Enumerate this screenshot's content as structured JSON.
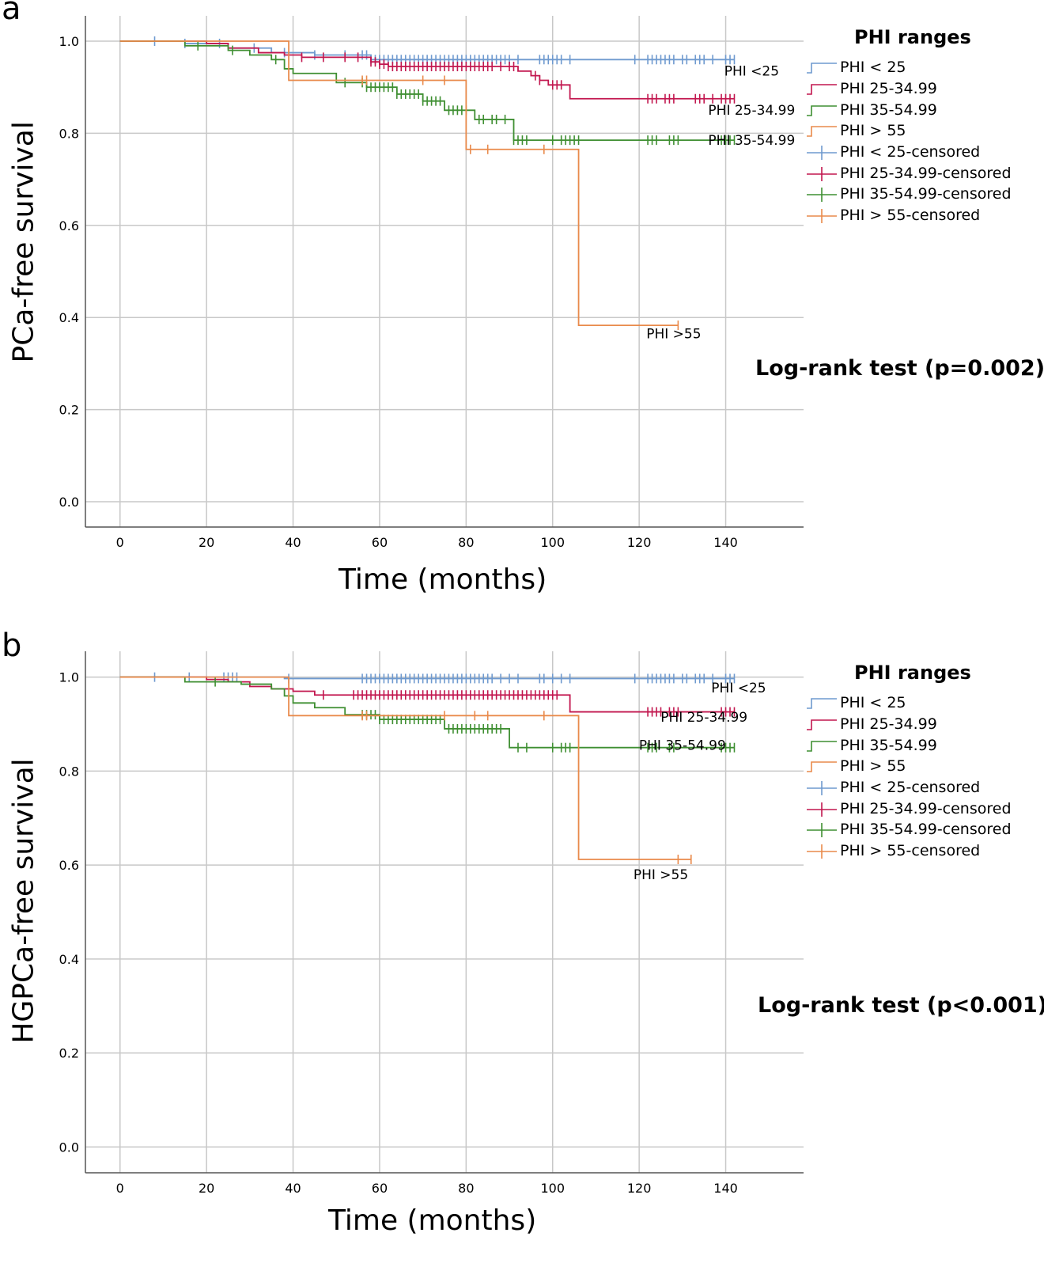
{
  "series_colors": {
    "PHI < 25": "#6F9ACF",
    "PHI 25-34.99": "#C2174F",
    "PHI 35-54.99": "#3F8F32",
    "PHI > 55": "#E98A4B"
  },
  "chart_data": [
    {
      "panel_letter": "a",
      "type": "line",
      "step": true,
      "xlabel": "Time (months)",
      "ylabel": "PCa-free survival",
      "xlim": [
        -8,
        158
      ],
      "ylim": [
        -0.055,
        1.055
      ],
      "xticks": [
        0,
        20,
        40,
        60,
        80,
        100,
        120,
        140
      ],
      "yticks": [
        "0.0",
        "0.2",
        "0.4",
        "0.6",
        "0.8",
        "1.0"
      ],
      "grid": true,
      "legend_title": "PHI ranges",
      "legend_position": "right",
      "legend": [
        "PHI < 25",
        "PHI 25-34.99",
        "PHI 35-54.99",
        "PHI > 55",
        "PHI < 25-censored",
        "PHI 25-34.99-censored",
        "PHI 35-54.99-censored",
        "PHI > 55-censored"
      ],
      "annotation": "Log-rank test (p=0.002)",
      "series": [
        {
          "name": "PHI < 25",
          "label": "PHI <25",
          "label_at": [
            146,
            0.925
          ],
          "steps": [
            [
              0,
              1
            ],
            [
              15,
              0.995
            ],
            [
              25,
              0.985
            ],
            [
              35,
              0.975
            ],
            [
              45,
              0.97
            ],
            [
              58,
              0.96
            ],
            [
              142,
              0.96
            ]
          ],
          "censored": [
            8,
            15,
            23,
            31,
            38,
            45,
            52,
            56,
            57,
            58,
            59,
            60,
            61,
            62,
            63,
            64,
            65,
            66,
            67,
            68,
            69,
            70,
            71,
            72,
            73,
            74,
            75,
            76,
            77,
            78,
            79,
            80,
            81,
            82,
            83,
            84,
            85,
            86,
            87,
            88,
            89,
            90,
            92,
            97,
            98,
            99,
            100,
            101,
            102,
            104,
            119,
            122,
            123,
            124,
            125,
            126,
            127,
            128,
            130,
            131,
            133,
            134,
            135,
            137,
            140,
            141,
            142
          ]
        },
        {
          "name": "PHI 25-34.99",
          "label": "PHI 25-34.99",
          "label_at": [
            146,
            0.84
          ],
          "steps": [
            [
              0,
              1
            ],
            [
              20,
              0.995
            ],
            [
              25,
              0.985
            ],
            [
              32,
              0.975
            ],
            [
              38,
              0.97
            ],
            [
              42,
              0.965
            ],
            [
              58,
              0.955
            ],
            [
              60,
              0.95
            ],
            [
              62,
              0.945
            ],
            [
              92,
              0.935
            ],
            [
              95,
              0.925
            ],
            [
              97,
              0.915
            ],
            [
              99,
              0.905
            ],
            [
              104,
              0.875
            ],
            [
              142,
              0.875
            ]
          ],
          "censored": [
            42,
            47,
            52,
            55,
            58,
            59,
            60,
            61,
            62,
            63,
            64,
            65,
            66,
            67,
            68,
            69,
            70,
            71,
            72,
            73,
            74,
            75,
            76,
            77,
            78,
            79,
            80,
            81,
            82,
            83,
            84,
            85,
            86,
            88,
            90,
            91,
            96,
            97,
            100,
            101,
            102,
            122,
            123,
            124,
            126,
            127,
            128,
            133,
            134,
            135,
            137,
            139,
            140,
            141,
            142
          ]
        },
        {
          "name": "PHI 35-54.99",
          "label": "PHI 35-54.99",
          "label_at": [
            146,
            0.775
          ],
          "steps": [
            [
              0,
              1
            ],
            [
              15,
              0.99
            ],
            [
              25,
              0.98
            ],
            [
              30,
              0.97
            ],
            [
              35,
              0.96
            ],
            [
              38,
              0.94
            ],
            [
              40,
              0.93
            ],
            [
              50,
              0.91
            ],
            [
              57,
              0.9
            ],
            [
              64,
              0.885
            ],
            [
              70,
              0.87
            ],
            [
              75,
              0.85
            ],
            [
              82,
              0.83
            ],
            [
              91,
              0.785
            ],
            [
              142,
              0.785
            ]
          ],
          "censored": [
            18,
            26,
            36,
            52,
            56,
            57,
            58,
            59,
            60,
            61,
            62,
            63,
            64,
            65,
            66,
            67,
            68,
            69,
            70,
            71,
            72,
            73,
            74,
            76,
            77,
            78,
            79,
            80,
            83,
            84,
            86,
            87,
            89,
            91,
            92,
            93,
            94,
            100,
            102,
            103,
            104,
            105,
            106,
            122,
            123,
            124,
            127,
            128,
            129,
            139,
            140,
            141,
            142
          ]
        },
        {
          "name": "PHI > 55",
          "label": "PHI >55",
          "label_at": [
            128,
            0.355
          ],
          "steps": [
            [
              0,
              1
            ],
            [
              39,
              0.915
            ],
            [
              80,
              0.765
            ],
            [
              106,
              0.383
            ],
            [
              129,
              0.383
            ]
          ],
          "censored": [
            56,
            57,
            70,
            75,
            81,
            85,
            98,
            129
          ]
        }
      ]
    },
    {
      "panel_letter": "b",
      "type": "line",
      "step": true,
      "xlabel": "Time (months)",
      "ylabel": "HGPCa-free survival",
      "xlim": [
        -8,
        158
      ],
      "ylim": [
        -0.055,
        1.055
      ],
      "xticks": [
        0,
        20,
        40,
        60,
        80,
        100,
        120,
        140
      ],
      "yticks": [
        "0.0",
        "0.2",
        "0.4",
        "0.6",
        "0.8",
        "1.0"
      ],
      "grid": true,
      "legend_title": "PHI ranges",
      "legend_position": "right",
      "legend": [
        "PHI < 25",
        "PHI 25-34.99",
        "PHI 35-54.99",
        "PHI > 55",
        "PHI < 25-censored",
        "PHI 25-34.99-censored",
        "PHI 35-54.99-censored",
        "PHI > 55-censored"
      ],
      "annotation": "Log-rank test (p<0.001)",
      "series": [
        {
          "name": "PHI < 25",
          "label": "PHI <25",
          "label_at": [
            143,
            0.967
          ],
          "steps": [
            [
              0,
              1
            ],
            [
              38,
              0.997
            ],
            [
              142,
              0.997
            ]
          ],
          "censored": [
            8,
            16,
            24,
            25,
            26,
            27,
            39,
            56,
            57,
            58,
            59,
            60,
            61,
            62,
            63,
            64,
            65,
            66,
            67,
            68,
            69,
            70,
            71,
            72,
            73,
            74,
            75,
            76,
            77,
            78,
            79,
            80,
            81,
            82,
            83,
            84,
            85,
            86,
            88,
            90,
            92,
            97,
            98,
            100,
            102,
            104,
            119,
            122,
            123,
            124,
            125,
            126,
            127,
            128,
            130,
            131,
            133,
            134,
            135,
            137,
            140,
            141,
            142
          ]
        },
        {
          "name": "PHI 25-34.99",
          "label": "PHI 25-34.99",
          "label_at": [
            135,
            0.905
          ],
          "steps": [
            [
              0,
              1
            ],
            [
              20,
              0.995
            ],
            [
              25,
              0.99
            ],
            [
              30,
              0.98
            ],
            [
              35,
              0.975
            ],
            [
              40,
              0.97
            ],
            [
              45,
              0.962
            ],
            [
              104,
              0.926
            ],
            [
              142,
              0.926
            ]
          ],
          "censored": [
            47,
            54,
            55,
            56,
            57,
            58,
            59,
            60,
            61,
            62,
            63,
            64,
            65,
            66,
            67,
            68,
            69,
            70,
            71,
            72,
            73,
            74,
            75,
            76,
            77,
            78,
            79,
            80,
            81,
            82,
            83,
            84,
            85,
            86,
            87,
            88,
            89,
            90,
            91,
            92,
            93,
            94,
            95,
            96,
            97,
            98,
            99,
            100,
            101,
            122,
            123,
            124,
            125,
            127,
            128,
            129,
            139,
            140,
            141,
            142
          ]
        },
        {
          "name": "PHI 35-54.99",
          "label": "PHI 35-54.99",
          "label_at": [
            130,
            0.845
          ],
          "steps": [
            [
              0,
              1
            ],
            [
              15,
              0.99
            ],
            [
              28,
              0.985
            ],
            [
              35,
              0.975
            ],
            [
              38,
              0.96
            ],
            [
              40,
              0.945
            ],
            [
              45,
              0.935
            ],
            [
              52,
              0.92
            ],
            [
              60,
              0.91
            ],
            [
              75,
              0.89
            ],
            [
              90,
              0.85
            ],
            [
              142,
              0.85
            ]
          ],
          "censored": [
            22,
            56,
            57,
            58,
            59,
            60,
            61,
            62,
            63,
            64,
            65,
            66,
            67,
            68,
            69,
            70,
            71,
            72,
            73,
            74,
            76,
            77,
            78,
            79,
            80,
            81,
            82,
            83,
            84,
            85,
            86,
            87,
            88,
            92,
            94,
            100,
            102,
            103,
            104,
            122,
            123,
            124,
            127,
            128,
            139,
            140,
            141,
            142
          ]
        },
        {
          "name": "PHI > 55",
          "label": "PHI >55",
          "label_at": [
            125,
            0.57
          ],
          "steps": [
            [
              0,
              1
            ],
            [
              39,
              0.918
            ],
            [
              106,
              0.612
            ],
            [
              132,
              0.612
            ]
          ],
          "censored": [
            56,
            57,
            75,
            82,
            85,
            98,
            129,
            132
          ]
        }
      ]
    }
  ]
}
